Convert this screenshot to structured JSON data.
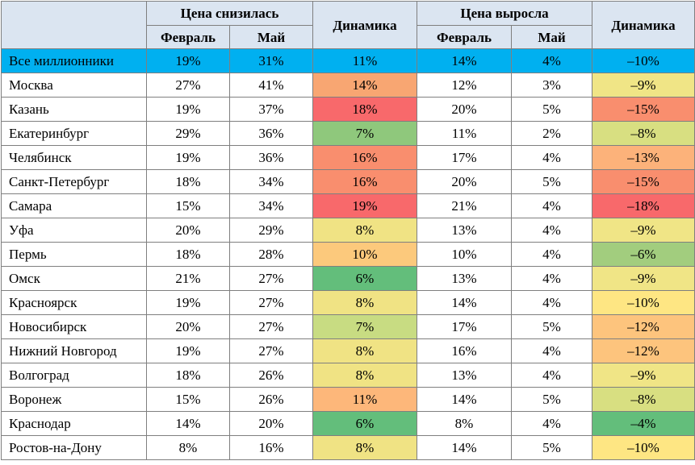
{
  "headers": {
    "group_down": "Цена снизилась",
    "group_up": "Цена выросла",
    "dynamics": "Динамика",
    "dynamics2": "Динамика",
    "feb": "Февраль",
    "may": "Май",
    "feb2": "Февраль",
    "may2": "Май"
  },
  "rows": [
    {
      "city": "Все миллионники",
      "down_feb": "19%",
      "down_may": "31%",
      "down_dyn": "11%",
      "up_feb": "14%",
      "up_may": "4%",
      "up_dyn": "–10%"
    },
    {
      "city": "Москва",
      "down_feb": "27%",
      "down_may": "41%",
      "down_dyn": "14%",
      "up_feb": "12%",
      "up_may": "3%",
      "up_dyn": "–9%"
    },
    {
      "city": "Казань",
      "down_feb": "19%",
      "down_may": "37%",
      "down_dyn": "18%",
      "up_feb": "20%",
      "up_may": "5%",
      "up_dyn": "–15%"
    },
    {
      "city": "Екатеринбург",
      "down_feb": "29%",
      "down_may": "36%",
      "down_dyn": "7%",
      "up_feb": "11%",
      "up_may": "2%",
      "up_dyn": "–8%"
    },
    {
      "city": "Челябинск",
      "down_feb": "19%",
      "down_may": "36%",
      "down_dyn": "16%",
      "up_feb": "17%",
      "up_may": "4%",
      "up_dyn": "–13%"
    },
    {
      "city": "Санкт-Петербург",
      "down_feb": "18%",
      "down_may": "34%",
      "down_dyn": "16%",
      "up_feb": "20%",
      "up_may": "5%",
      "up_dyn": "–15%"
    },
    {
      "city": "Самара",
      "down_feb": "15%",
      "down_may": "34%",
      "down_dyn": "19%",
      "up_feb": "21%",
      "up_may": "4%",
      "up_dyn": "–18%"
    },
    {
      "city": "Уфа",
      "down_feb": "20%",
      "down_may": "29%",
      "down_dyn": "8%",
      "up_feb": "13%",
      "up_may": "4%",
      "up_dyn": "–9%"
    },
    {
      "city": "Пермь",
      "down_feb": "18%",
      "down_may": "28%",
      "down_dyn": "10%",
      "up_feb": "10%",
      "up_may": "4%",
      "up_dyn": "–6%"
    },
    {
      "city": "Омск",
      "down_feb": "21%",
      "down_may": "27%",
      "down_dyn": "6%",
      "up_feb": "13%",
      "up_may": "4%",
      "up_dyn": "–9%"
    },
    {
      "city": "Красноярск",
      "down_feb": "19%",
      "down_may": "27%",
      "down_dyn": "8%",
      "up_feb": "14%",
      "up_may": "4%",
      "up_dyn": "–10%"
    },
    {
      "city": "Новосибирск",
      "down_feb": "20%",
      "down_may": "27%",
      "down_dyn": "7%",
      "up_feb": "17%",
      "up_may": "5%",
      "up_dyn": "–12%"
    },
    {
      "city": "Нижний Новгород",
      "down_feb": "19%",
      "down_may": "27%",
      "down_dyn": "8%",
      "up_feb": "16%",
      "up_may": "4%",
      "up_dyn": "–12%"
    },
    {
      "city": "Волгоград",
      "down_feb": "18%",
      "down_may": "26%",
      "down_dyn": "8%",
      "up_feb": "13%",
      "up_may": "4%",
      "up_dyn": "–9%"
    },
    {
      "city": "Воронеж",
      "down_feb": "15%",
      "down_may": "26%",
      "down_dyn": "11%",
      "up_feb": "14%",
      "up_may": "5%",
      "up_dyn": "–8%"
    },
    {
      "city": "Краснодар",
      "down_feb": "14%",
      "down_may": "20%",
      "down_dyn": "6%",
      "up_feb": "8%",
      "up_may": "4%",
      "up_dyn": "–4%"
    },
    {
      "city": "Ростов-на-Дону",
      "down_feb": "8%",
      "down_may": "16%",
      "down_dyn": "8%",
      "up_feb": "14%",
      "up_may": "5%",
      "up_dyn": "–10%"
    }
  ],
  "colors": {
    "header_bg": "#dbe5f1",
    "total_row_bg": "#00b0f0",
    "down_dyn": [
      "#00b0f0",
      "#f8a672",
      "#f8696b",
      "#8fc87c",
      "#f98e6e",
      "#f98e6e",
      "#f8696b",
      "#f0e384",
      "#fcc97c",
      "#63be7b",
      "#f0e384",
      "#c8dc82",
      "#f0e384",
      "#f0e384",
      "#fdb77a",
      "#63be7b",
      "#f0e384"
    ],
    "up_dyn": [
      "#00b0f0",
      "#f0e586",
      "#f98e6e",
      "#d8df81",
      "#fcb27a",
      "#f98e6e",
      "#f8696b",
      "#f0e586",
      "#a2cd7e",
      "#f0e586",
      "#fee683",
      "#fdc47d",
      "#fdc47d",
      "#f0e586",
      "#d8df81",
      "#63be7b",
      "#fee683"
    ]
  }
}
